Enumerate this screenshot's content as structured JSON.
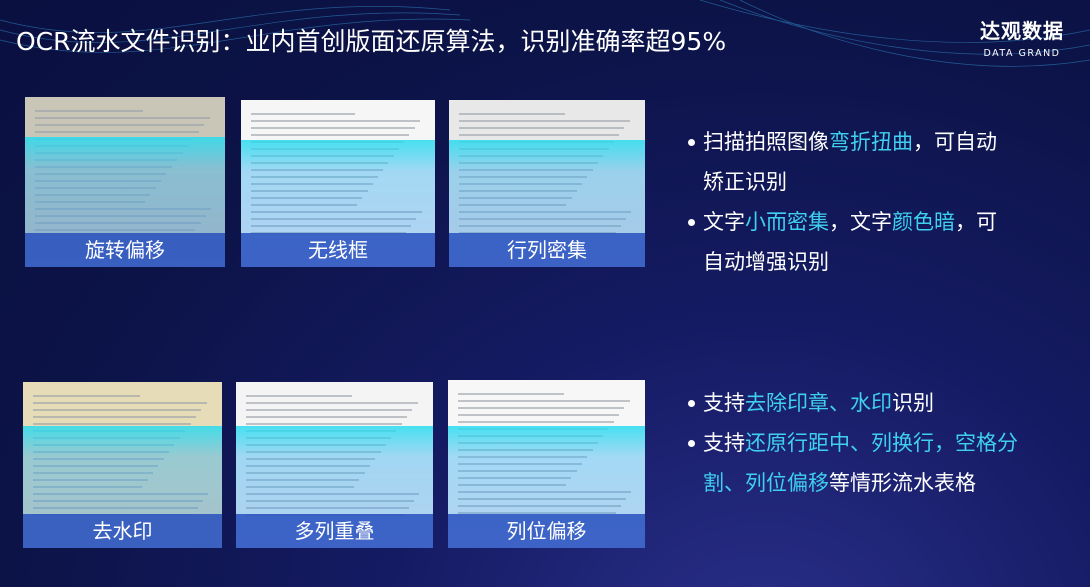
{
  "slide": {
    "title": "OCR流水文件识别：业内首创版面还原算法，识别准确率超95%",
    "logo": {
      "cn": "达观数据",
      "en": "DATA GRAND"
    },
    "highlight_color": "#3fd0f0",
    "cards": [
      {
        "label": "旋转偏移"
      },
      {
        "label": "无线框"
      },
      {
        "label": "行列密集"
      },
      {
        "label": "去水印"
      },
      {
        "label": "多列重叠"
      },
      {
        "label": "列位偏移"
      }
    ],
    "bullets": [
      {
        "segments": [
          {
            "text": "扫描拍照图像",
            "hl": false
          },
          {
            "text": "弯折扭曲",
            "hl": true
          },
          {
            "text": "，可自动矫正识别",
            "hl": false
          }
        ]
      },
      {
        "segments": [
          {
            "text": "文字",
            "hl": false
          },
          {
            "text": "小而密集",
            "hl": true
          },
          {
            "text": "，文字",
            "hl": false
          },
          {
            "text": "颜色暗",
            "hl": true
          },
          {
            "text": "，可自动增强识别",
            "hl": false
          }
        ]
      },
      {
        "segments": [
          {
            "text": "支持",
            "hl": false
          },
          {
            "text": "去除印章、水印",
            "hl": true
          },
          {
            "text": "识别",
            "hl": false
          }
        ]
      },
      {
        "segments": [
          {
            "text": "支持",
            "hl": false
          },
          {
            "text": "还原行距中、列换行，空格分割、列位偏移",
            "hl": true
          },
          {
            "text": "等情形流水表格",
            "hl": false
          }
        ]
      }
    ]
  }
}
